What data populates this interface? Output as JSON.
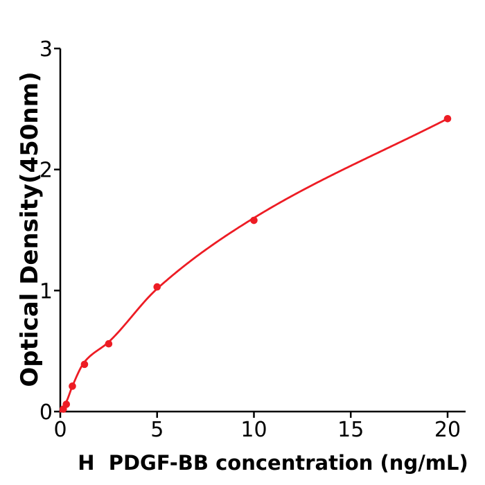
{
  "figure": {
    "background": "#ffffff",
    "description": "ELISA standard curve scatter plot with fitted saturation curve"
  },
  "chart_data": {
    "type": "scatter",
    "title": "",
    "xlabel": "H  PDGF-BB concentration (ng/mL)",
    "ylabel": "Optical Density(450nm)",
    "x_ticks": [
      0,
      5,
      10,
      15,
      20
    ],
    "y_ticks": [
      0,
      1,
      2,
      3
    ],
    "xlim": [
      0,
      20.93
    ],
    "ylim": [
      0,
      3
    ],
    "grid": false,
    "legend": null,
    "points": {
      "x": [
        0.156,
        0.3125,
        0.625,
        1.25,
        2.5,
        5,
        10,
        20
      ],
      "y": [
        0.02,
        0.06,
        0.21,
        0.39,
        0.56,
        1.03,
        1.58,
        2.42
      ]
    },
    "fit_curve": {
      "style": "smooth saturation fit through data",
      "anchors_xy": [
        [
          0,
          0
        ],
        [
          0.3125,
          0.08
        ],
        [
          0.625,
          0.21
        ],
        [
          1.25,
          0.41
        ],
        [
          2.5,
          0.575
        ],
        [
          5,
          1.015
        ],
        [
          10,
          1.6
        ],
        [
          20,
          2.42
        ]
      ]
    },
    "colors": {
      "series": "#ed1c24",
      "axis": "#000000",
      "text": "#000000"
    },
    "marker": {
      "shape": "circle",
      "radius": 5.3
    },
    "line_width": 2.8
  }
}
